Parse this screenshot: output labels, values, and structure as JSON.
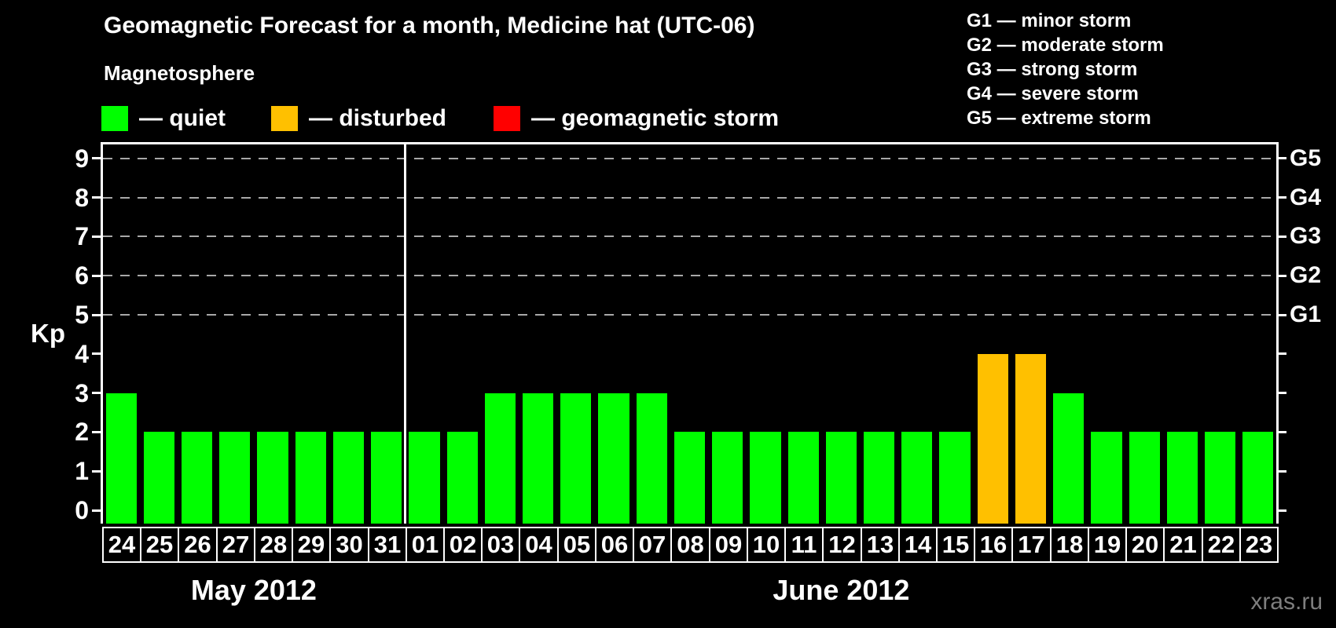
{
  "title": "Geomagnetic Forecast for a month, Medicine hat (UTC-06)",
  "subtitle": "Magnetosphere",
  "watermark": "xras.ru",
  "colors": {
    "quiet": "#00ff00",
    "disturbed": "#ffc000",
    "storm": "#ff0000",
    "background": "#000000",
    "text": "#ffffff",
    "grid": "#a8a8a8",
    "watermark_gray": "#7e7e7e"
  },
  "legend": [
    {
      "state": "quiet",
      "label": "— quiet"
    },
    {
      "state": "disturbed",
      "label": "— disturbed"
    },
    {
      "state": "storm",
      "label": "— geomagnetic storm"
    }
  ],
  "g_legend": [
    "G1 — minor storm",
    "G2 — moderate storm",
    "G3 — strong storm",
    "G4 — severe storm",
    "G5 — extreme storm"
  ],
  "axis": {
    "ylabel": "Kp",
    "yticks": [
      0,
      1,
      2,
      3,
      4,
      5,
      6,
      7,
      8,
      9
    ],
    "grid_levels": [
      5,
      6,
      7,
      8,
      9
    ],
    "right_labels": [
      {
        "kp": 5,
        "label": "G1"
      },
      {
        "kp": 6,
        "label": "G2"
      },
      {
        "kp": 7,
        "label": "G3"
      },
      {
        "kp": 8,
        "label": "G4"
      },
      {
        "kp": 9,
        "label": "G5"
      }
    ]
  },
  "chart_data": {
    "type": "bar",
    "title": "Geomagnetic Forecast for a month, Medicine hat (UTC-06)",
    "xlabel": "",
    "ylabel": "Kp",
    "ylim": [
      0,
      9
    ],
    "grid": "dashed horizontal lines at Kp 5,6,7,8,9 (G1–G5)",
    "legend_position": "top",
    "months": [
      {
        "label": "May 2012",
        "days": [
          "24",
          "25",
          "26",
          "27",
          "28",
          "29",
          "30",
          "31"
        ],
        "values": [
          3,
          2,
          2,
          2,
          2,
          2,
          2,
          2
        ],
        "states": [
          "quiet",
          "quiet",
          "quiet",
          "quiet",
          "quiet",
          "quiet",
          "quiet",
          "quiet"
        ]
      },
      {
        "label": "June 2012",
        "days": [
          "01",
          "02",
          "03",
          "04",
          "05",
          "06",
          "07",
          "08",
          "09",
          "10",
          "11",
          "12",
          "13",
          "14",
          "15",
          "16",
          "17",
          "18",
          "19",
          "20",
          "21",
          "22",
          "23"
        ],
        "values": [
          2,
          2,
          3,
          3,
          3,
          3,
          3,
          2,
          2,
          2,
          2,
          2,
          2,
          2,
          2,
          4,
          4,
          3,
          2,
          2,
          2,
          2,
          2
        ],
        "states": [
          "quiet",
          "quiet",
          "quiet",
          "quiet",
          "quiet",
          "quiet",
          "quiet",
          "quiet",
          "quiet",
          "quiet",
          "quiet",
          "quiet",
          "quiet",
          "quiet",
          "quiet",
          "disturbed",
          "disturbed",
          "quiet",
          "quiet",
          "quiet",
          "quiet",
          "quiet",
          "quiet"
        ]
      }
    ]
  }
}
